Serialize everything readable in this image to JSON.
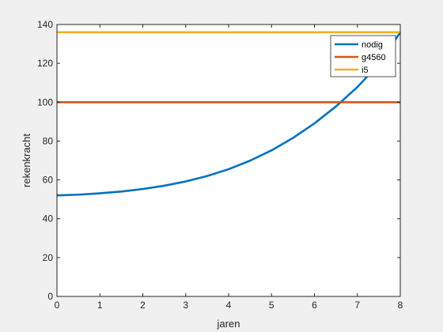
{
  "chart_data": {
    "type": "line",
    "xlabel": "jaren",
    "ylabel": "rekenkracht",
    "xlim": [
      0,
      8
    ],
    "ylim": [
      0,
      140
    ],
    "xticks": [
      "0",
      "1",
      "2",
      "3",
      "4",
      "5",
      "6",
      "7",
      "8"
    ],
    "yticks": [
      "0",
      "20",
      "40",
      "60",
      "80",
      "100",
      "120",
      "140"
    ],
    "grid": false,
    "legend_position": "top-right",
    "series": [
      {
        "name": "nodig",
        "color": "#0072bd",
        "x": [
          0,
          0.5,
          1,
          1.5,
          2,
          2.5,
          3,
          3.5,
          4,
          4.5,
          5,
          5.5,
          6,
          6.5,
          7,
          7.5,
          8
        ],
        "y": [
          52,
          52.4,
          53.1,
          54.0,
          55.3,
          57.0,
          59.2,
          62.0,
          65.5,
          69.9,
          75.2,
          81.6,
          89.1,
          97.8,
          107.8,
          119.6,
          136
        ]
      },
      {
        "name": "g4560",
        "color": "#d95319",
        "x": [
          0,
          8
        ],
        "y": [
          100,
          100
        ]
      },
      {
        "name": "i5",
        "color": "#edb120",
        "x": [
          0,
          8
        ],
        "y": [
          136,
          136
        ]
      }
    ]
  }
}
